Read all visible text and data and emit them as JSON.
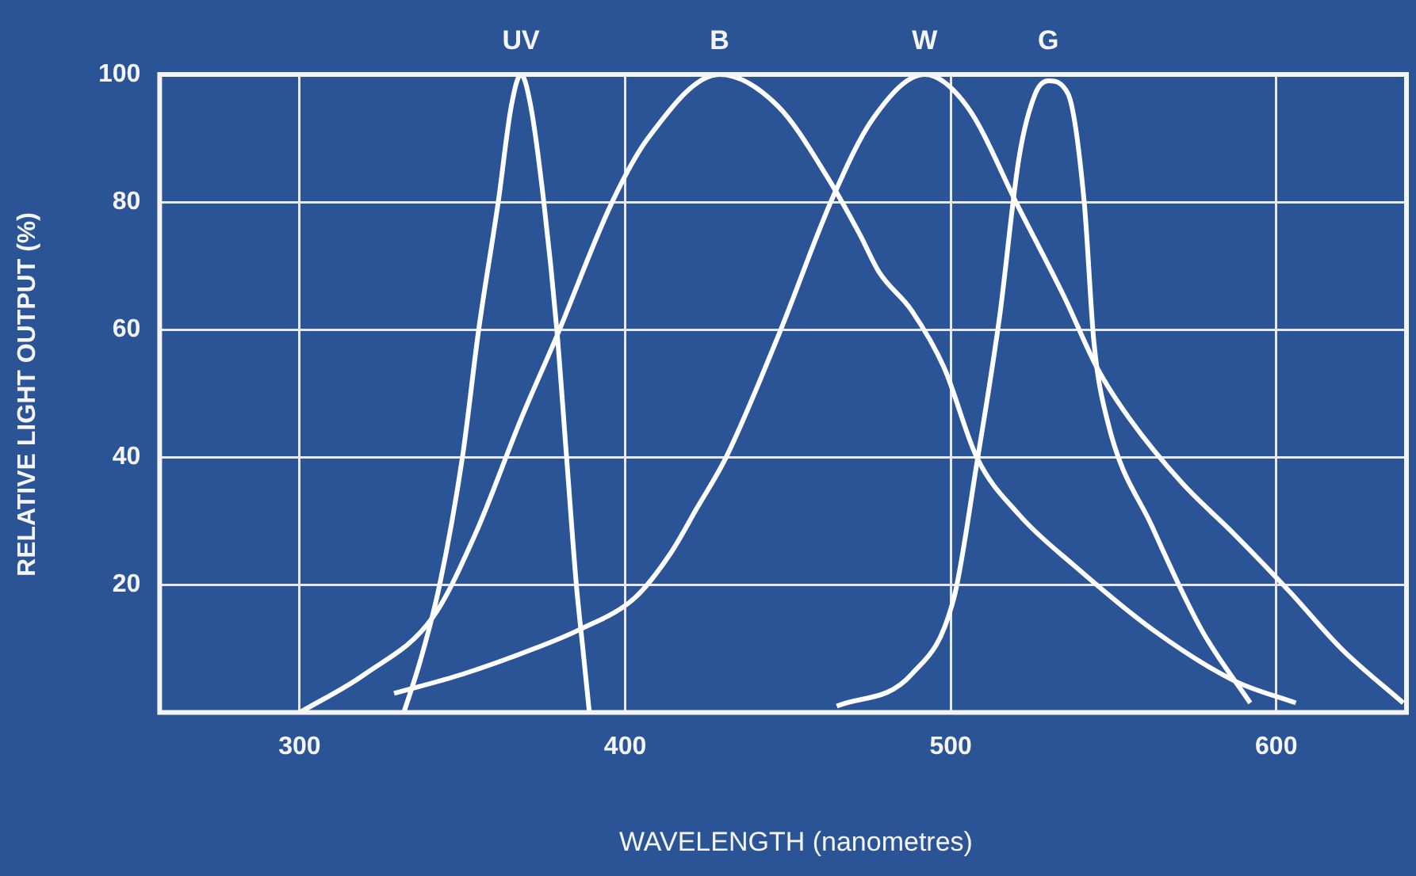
{
  "chart_data": {
    "type": "line",
    "xlabel": "WAVELENGTH (nanometres)",
    "ylabel": "RELATIVE LIGHT OUTPUT (%)",
    "xlim": [
      257,
      640
    ],
    "ylim": [
      0,
      100
    ],
    "xticks": [
      300,
      400,
      500,
      600
    ],
    "yticks": [
      20,
      40,
      60,
      80,
      100
    ],
    "grid": true,
    "legend": false,
    "marker": "none",
    "line_style": "solid",
    "series": [
      {
        "name": "UV",
        "color": "#ffffff",
        "x": [
          332,
          337,
          343,
          350,
          355,
          361,
          365,
          368,
          371,
          375,
          379,
          382,
          385,
          387,
          389
        ],
        "values": [
          0,
          8,
          20,
          40,
          60,
          80,
          95,
          100,
          95,
          80,
          60,
          40,
          20,
          10,
          0
        ]
      },
      {
        "name": "B",
        "color": "#ffffff",
        "x": [
          300,
          320,
          341,
          354,
          368,
          379,
          396,
          407,
          429,
          447,
          462,
          472,
          478,
          488,
          498,
          508,
          521,
          538,
          562,
          587,
          606
        ],
        "values": [
          0,
          6,
          15,
          28,
          46,
          59,
          80,
          90,
          100,
          95,
          84,
          75,
          69,
          63,
          54,
          40,
          31,
          23,
          13,
          5,
          1.5
        ]
      },
      {
        "name": "W",
        "color": "#ffffff",
        "x": [
          329,
          350,
          372,
          386,
          403,
          414,
          422,
          431,
          447,
          464,
          476,
          492,
          505,
          521,
          535,
          545,
          555,
          571,
          587,
          604,
          620,
          639
        ],
        "values": [
          3,
          6,
          10,
          13,
          18,
          25,
          32,
          40,
          59,
          81,
          93,
          100,
          95,
          79,
          65,
          54,
          46,
          36,
          28,
          19,
          10,
          1.5
        ]
      },
      {
        "name": "G",
        "color": "#ffffff",
        "x": [
          465,
          488,
          501,
          508,
          515,
          521,
          526,
          530,
          536,
          541,
          544,
          548,
          562,
          577,
          592
        ],
        "values": [
          1,
          6,
          18,
          39,
          62,
          87,
          97,
          99,
          97,
          80,
          58,
          46,
          29,
          13,
          1.5
        ]
      }
    ]
  }
}
